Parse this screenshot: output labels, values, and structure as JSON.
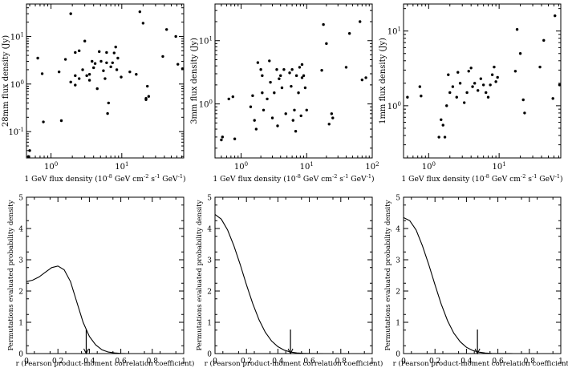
{
  "chart_data": [
    {
      "type": "scatter",
      "xlabel_main": "1 GeV flux density (10",
      "xlabel_exp1": "-8",
      "xlabel_mid": " GeV cm",
      "xlabel_exp2": "-2",
      "xlabel_s": " s",
      "xlabel_exp3": "-1",
      "xlabel_gev": " GeV",
      "xlabel_exp4": "-1",
      "xlabel_end": ")",
      "ylabel": "28mm flux density (Jy)",
      "xscale": "log",
      "yscale": "log",
      "xlim": [
        0.45,
        75
      ],
      "ylim": [
        0.028,
        48
      ],
      "xticks": [
        {
          "v": 1,
          "b": "10",
          "e": "0"
        },
        {
          "v": 10,
          "b": "10",
          "e": "1"
        }
      ],
      "yticks": [
        {
          "v": 0.1,
          "b": "10",
          "e": "-1"
        },
        {
          "v": 1,
          "b": "10",
          "e": "0"
        },
        {
          "v": 10,
          "b": "10",
          "e": "1"
        }
      ],
      "points": [
        [
          0.48,
          0.03
        ],
        [
          0.5,
          0.04
        ],
        [
          0.65,
          3.5
        ],
        [
          0.75,
          1.65
        ],
        [
          0.78,
          0.16
        ],
        [
          1.3,
          1.8
        ],
        [
          1.4,
          0.17
        ],
        [
          1.6,
          3.3
        ],
        [
          1.9,
          1.1
        ],
        [
          1.9,
          30
        ],
        [
          2.2,
          1.5
        ],
        [
          2.2,
          4.6
        ],
        [
          2.2,
          0.95
        ],
        [
          2.5,
          1.3
        ],
        [
          2.5,
          5
        ],
        [
          2.8,
          2
        ],
        [
          3,
          8
        ],
        [
          3.2,
          1.5
        ],
        [
          3.5,
          1.2
        ],
        [
          3.5,
          1.6
        ],
        [
          3.8,
          3
        ],
        [
          4,
          2.2
        ],
        [
          4.2,
          2.7
        ],
        [
          4.5,
          0.8
        ],
        [
          4.8,
          4.8
        ],
        [
          5.1,
          3
        ],
        [
          5.5,
          1.9
        ],
        [
          5.8,
          1.3
        ],
        [
          6.1,
          4.6
        ],
        [
          6.1,
          2.8
        ],
        [
          6.3,
          0.24
        ],
        [
          6.5,
          0.4
        ],
        [
          7,
          2.3
        ],
        [
          7.4,
          2.8
        ],
        [
          7.8,
          4.5
        ],
        [
          8.2,
          6
        ],
        [
          8.5,
          2
        ],
        [
          8.8,
          3.5
        ],
        [
          9.8,
          1.4
        ],
        [
          13,
          1.8
        ],
        [
          16,
          1.6
        ],
        [
          18,
          33
        ],
        [
          20,
          19
        ],
        [
          22,
          0.47
        ],
        [
          22,
          0.5
        ],
        [
          23,
          0.9
        ],
        [
          24,
          0.55
        ],
        [
          38,
          3.8
        ],
        [
          43,
          14
        ],
        [
          58,
          10
        ],
        [
          62,
          2.6
        ],
        [
          72,
          2.1
        ]
      ]
    },
    {
      "type": "scatter",
      "xlabel_main": "1 GeV flux density (10",
      "xlabel_exp1": "-8",
      "xlabel_mid": " GeV cm",
      "xlabel_exp2": "-2",
      "xlabel_s": " s",
      "xlabel_exp3": "-1",
      "xlabel_gev": " GeV",
      "xlabel_exp4": "-1",
      "xlabel_end": ")",
      "ylabel": "3mm flux density (Jy)",
      "xscale": "log",
      "yscale": "log",
      "xlim": [
        0.4,
        100
      ],
      "ylim": [
        0.14,
        38
      ],
      "xticks": [
        {
          "v": 1,
          "b": "10",
          "e": "0"
        },
        {
          "v": 10,
          "b": "10",
          "e": "1"
        },
        {
          "v": 100,
          "b": "10",
          "e": "2"
        }
      ],
      "yticks": [
        {
          "v": 1,
          "b": "10",
          "e": "0"
        },
        {
          "v": 10,
          "b": "10",
          "e": "1"
        }
      ],
      "points": [
        [
          0.5,
          0.27
        ],
        [
          0.52,
          0.3
        ],
        [
          0.65,
          1.2
        ],
        [
          0.75,
          1.3
        ],
        [
          0.8,
          0.28
        ],
        [
          1.4,
          0.9
        ],
        [
          1.5,
          1.35
        ],
        [
          1.6,
          0.55
        ],
        [
          1.7,
          0.4
        ],
        [
          1.8,
          4.5
        ],
        [
          2,
          3.5
        ],
        [
          2.1,
          1.5
        ],
        [
          2.1,
          2.8
        ],
        [
          2.2,
          0.8
        ],
        [
          2.5,
          1.2
        ],
        [
          2.7,
          4.8
        ],
        [
          2.8,
          2.2
        ],
        [
          3,
          0.6
        ],
        [
          3.2,
          1.5
        ],
        [
          3.5,
          3.5
        ],
        [
          3.6,
          0.45
        ],
        [
          3.8,
          2.5
        ],
        [
          4,
          2.8
        ],
        [
          4.2,
          1.8
        ],
        [
          4.5,
          3.5
        ],
        [
          4.8,
          0.7
        ],
        [
          5.5,
          3.1
        ],
        [
          5.8,
          1.9
        ],
        [
          6,
          3.5
        ],
        [
          6.2,
          0.55
        ],
        [
          6.5,
          0.8
        ],
        [
          6.8,
          0.37
        ],
        [
          7,
          2.8
        ],
        [
          7.5,
          1.5
        ],
        [
          7.8,
          3.8
        ],
        [
          8.2,
          0.65
        ],
        [
          8.5,
          2.6
        ],
        [
          8.5,
          4.2
        ],
        [
          9,
          2.8
        ],
        [
          9.5,
          1.8
        ],
        [
          10,
          0.8
        ],
        [
          17,
          3.4
        ],
        [
          18,
          18
        ],
        [
          20,
          9
        ],
        [
          22,
          0.48
        ],
        [
          24,
          0.7
        ],
        [
          25,
          0.6
        ],
        [
          40,
          3.8
        ],
        [
          45,
          13
        ],
        [
          65,
          20
        ],
        [
          70,
          2.4
        ],
        [
          80,
          2.6
        ]
      ]
    },
    {
      "type": "scatter",
      "xlabel_main": "1 GeV flux density (10",
      "xlabel_exp1": "-8",
      "xlabel_mid": " GeV cm",
      "xlabel_exp2": "-2",
      "xlabel_s": " s",
      "xlabel_exp3": "-1",
      "xlabel_gev": " GeV",
      "xlabel_exp4": "-1",
      "xlabel_end": ")",
      "ylabel": "1mm flux density (Jy)",
      "xscale": "log",
      "yscale": "log",
      "xlim": [
        0.44,
        75
      ],
      "ylim": [
        0.2,
        23
      ],
      "xticks": [
        {
          "v": 1,
          "b": "10",
          "e": "0"
        },
        {
          "v": 10,
          "b": "10",
          "e": "1"
        }
      ],
      "yticks": [
        {
          "v": 1,
          "b": "10",
          "e": "0"
        },
        {
          "v": 10,
          "b": "10",
          "e": "1"
        }
      ],
      "points": [
        [
          0.5,
          1.3
        ],
        [
          0.75,
          1.8
        ],
        [
          0.78,
          1.35
        ],
        [
          1.4,
          0.38
        ],
        [
          1.5,
          0.65
        ],
        [
          1.6,
          0.55
        ],
        [
          1.7,
          0.38
        ],
        [
          1.8,
          1
        ],
        [
          1.9,
          2.6
        ],
        [
          2,
          1.5
        ],
        [
          2.2,
          1.8
        ],
        [
          2.5,
          1.3
        ],
        [
          2.6,
          2.8
        ],
        [
          2.8,
          2
        ],
        [
          3.2,
          1.1
        ],
        [
          3.5,
          1.5
        ],
        [
          3.7,
          2.9
        ],
        [
          4,
          3.2
        ],
        [
          4.2,
          1.8
        ],
        [
          4.5,
          2
        ],
        [
          5,
          1.6
        ],
        [
          5.5,
          2.3
        ],
        [
          6,
          1.9
        ],
        [
          6.5,
          1.5
        ],
        [
          7,
          1.3
        ],
        [
          7.5,
          1.9
        ],
        [
          8,
          2.6
        ],
        [
          8.5,
          3.3
        ],
        [
          9,
          2.1
        ],
        [
          9.5,
          2.4
        ],
        [
          17,
          2.9
        ],
        [
          18,
          10.5
        ],
        [
          20,
          5
        ],
        [
          22,
          1.2
        ],
        [
          23,
          0.8
        ],
        [
          38,
          3.3
        ],
        [
          43,
          7.5
        ],
        [
          58,
          1.25
        ],
        [
          62,
          16
        ],
        [
          72,
          1.9
        ]
      ]
    },
    {
      "type": "line",
      "xlabel": "r (Pearson product-moment correlation coefficient)",
      "ylabel": "Permutations evaluated probability density",
      "xlim": [
        0,
        1
      ],
      "ylim": [
        0,
        5
      ],
      "xticks": [
        "0",
        "0.2",
        "0.4",
        "0.6",
        "0.8",
        "1"
      ],
      "yticks": [
        "0",
        "1",
        "2",
        "3",
        "4",
        "5"
      ],
      "series": [
        {
          "x": [
            0,
            0.04,
            0.08,
            0.12,
            0.16,
            0.2,
            0.24,
            0.28,
            0.32,
            0.36,
            0.4,
            0.44,
            0.48,
            0.52,
            0.56,
            0.6,
            0.64,
            0.7,
            0.8,
            1
          ],
          "y": [
            2.3,
            2.35,
            2.45,
            2.6,
            2.75,
            2.8,
            2.68,
            2.3,
            1.65,
            1.0,
            0.55,
            0.28,
            0.12,
            0.05,
            0.02,
            0.005,
            0,
            0,
            0,
            0
          ]
        }
      ],
      "observed_r": 0.38
    },
    {
      "type": "line",
      "xlabel": "r (Pearson product-moment correlation coefficient)",
      "ylabel": "Permutations evaluated probability density",
      "xlim": [
        0,
        1
      ],
      "ylim": [
        0,
        5
      ],
      "xticks": [
        "0",
        "0.2",
        "0.4",
        "0.6",
        "0.8",
        "1"
      ],
      "yticks": [
        "0",
        "1",
        "2",
        "3",
        "4",
        "5"
      ],
      "series": [
        {
          "x": [
            0,
            0.04,
            0.08,
            0.12,
            0.16,
            0.2,
            0.24,
            0.28,
            0.32,
            0.36,
            0.4,
            0.44,
            0.48,
            0.52,
            0.56,
            0.6,
            0.7,
            1
          ],
          "y": [
            4.45,
            4.3,
            3.95,
            3.45,
            2.85,
            2.2,
            1.6,
            1.08,
            0.68,
            0.4,
            0.22,
            0.11,
            0.05,
            0.02,
            0.008,
            0.002,
            0,
            0
          ]
        }
      ],
      "observed_r": 0.48
    },
    {
      "type": "line",
      "xlabel": "r (Pearson product-moment correlation coefficient)",
      "ylabel": "Permutations evaluated probability density",
      "xlim": [
        0,
        1
      ],
      "ylim": [
        0,
        5
      ],
      "xticks": [
        "0",
        "0.2",
        "0.4",
        "0.6",
        "0.8",
        "1"
      ],
      "yticks": [
        "0",
        "1",
        "2",
        "3",
        "4",
        "5"
      ],
      "series": [
        {
          "x": [
            0,
            0.04,
            0.08,
            0.12,
            0.16,
            0.2,
            0.24,
            0.28,
            0.32,
            0.36,
            0.4,
            0.44,
            0.48,
            0.52,
            0.56,
            0.6,
            0.7,
            1
          ],
          "y": [
            4.35,
            4.25,
            3.95,
            3.45,
            2.85,
            2.2,
            1.58,
            1.05,
            0.65,
            0.38,
            0.2,
            0.1,
            0.045,
            0.018,
            0.006,
            0.002,
            0,
            0
          ]
        }
      ],
      "observed_r": 0.47
    }
  ]
}
